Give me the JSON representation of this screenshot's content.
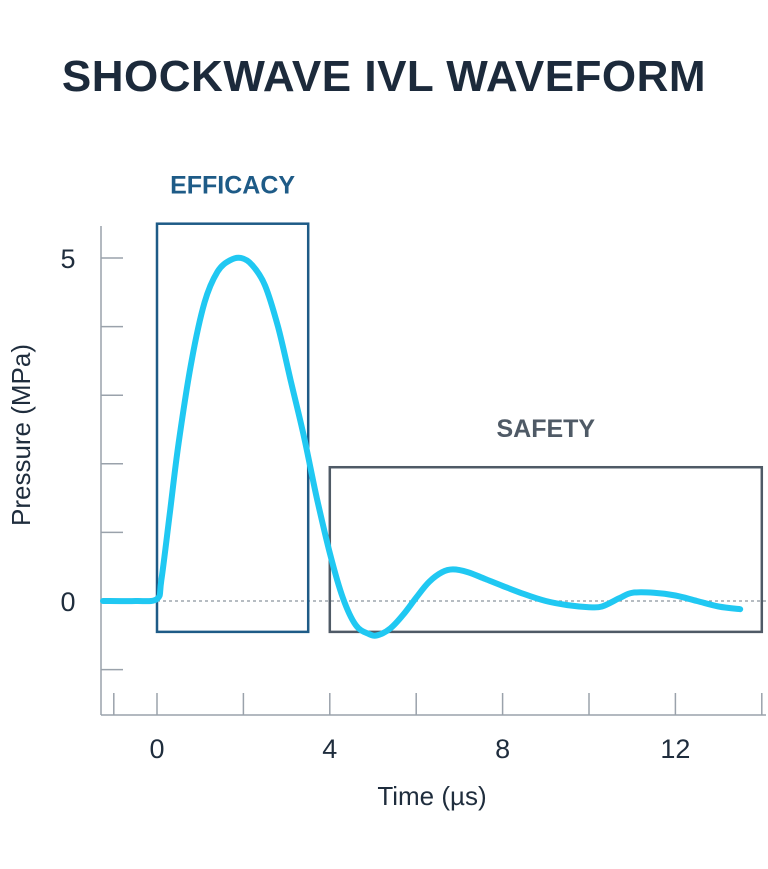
{
  "title": "SHOCKWAVE IVL WAVEFORM",
  "chart_data": {
    "type": "line",
    "xlabel": "Time (µs)",
    "ylabel": "Pressure (MPa)",
    "xlim": [
      -1.25,
      14
    ],
    "ylim": [
      -1.65,
      5.5
    ],
    "x_ticks": [
      0,
      4,
      8,
      12
    ],
    "x_minor_ticks": [
      -1,
      0,
      2,
      4,
      6,
      8,
      10,
      12,
      14
    ],
    "y_ticks": [
      0,
      5
    ],
    "y_minor_ticks": [
      -1,
      0,
      1,
      2,
      3,
      4,
      5
    ],
    "zero_line": true,
    "series": [
      {
        "color": "#20c8f2",
        "x": [
          -1.25,
          -0.5,
          0.0,
          0.1,
          0.3,
          0.5,
          0.8,
          1.1,
          1.4,
          1.7,
          1.95,
          2.2,
          2.5,
          2.8,
          3.1,
          3.4,
          3.7,
          4.0,
          4.3,
          4.6,
          4.9,
          5.1,
          5.4,
          5.7,
          6.0,
          6.3,
          6.6,
          6.85,
          7.2,
          7.6,
          8.0,
          8.5,
          9.0,
          9.5,
          10.0,
          10.3,
          10.7,
          11.0,
          11.5,
          12.0,
          12.5,
          13.0,
          13.5
        ],
        "y": [
          0.0,
          0.0,
          0.03,
          0.3,
          1.3,
          2.3,
          3.5,
          4.35,
          4.8,
          4.97,
          5.0,
          4.9,
          4.6,
          4.0,
          3.2,
          2.4,
          1.5,
          0.7,
          0.05,
          -0.35,
          -0.48,
          -0.5,
          -0.4,
          -0.2,
          0.05,
          0.28,
          0.42,
          0.46,
          0.42,
          0.32,
          0.22,
          0.1,
          0.0,
          -0.06,
          -0.09,
          -0.08,
          0.04,
          0.12,
          0.12,
          0.08,
          0.0,
          -0.08,
          -0.12
        ]
      }
    ],
    "annotations": [
      {
        "label": "EFFICACY",
        "x_range": [
          0.0,
          3.5
        ],
        "y_range": [
          -0.45,
          5.5
        ],
        "color": "#1e5b87"
      },
      {
        "label": "SAFETY",
        "x_range": [
          4.0,
          14.0
        ],
        "y_range": [
          -0.45,
          1.95
        ],
        "color": "#4f5a66"
      }
    ]
  }
}
